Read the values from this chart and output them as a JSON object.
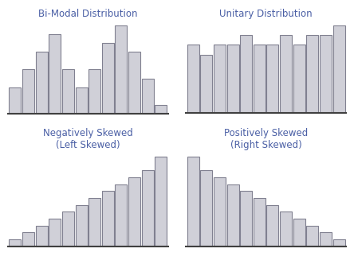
{
  "title_color": "#4a5fa5",
  "bar_facecolor": "#d0d0d8",
  "bar_edgecolor": "#808090",
  "bg_color": "#ffffff",
  "baseline_color": "#404040",
  "bimodal": {
    "title": "Bi-Modal Distribution",
    "values": [
      3,
      5,
      7,
      9,
      5,
      3,
      5,
      8,
      10,
      7,
      4,
      1
    ]
  },
  "unitary": {
    "title": "Unitary Distribution",
    "values": [
      7,
      6,
      7,
      7,
      8,
      7,
      7,
      8,
      7,
      8,
      8,
      9
    ]
  },
  "neg_skew": {
    "title": "Negatively Skewed\n(Left Skewed)",
    "values": [
      1,
      2,
      3,
      4,
      5,
      6,
      7,
      8,
      9,
      10,
      11,
      13
    ]
  },
  "pos_skew": {
    "title": "Positively Skewed\n(Right Skewed)",
    "values": [
      13,
      11,
      10,
      9,
      8,
      7,
      6,
      5,
      4,
      3,
      2,
      1
    ]
  }
}
